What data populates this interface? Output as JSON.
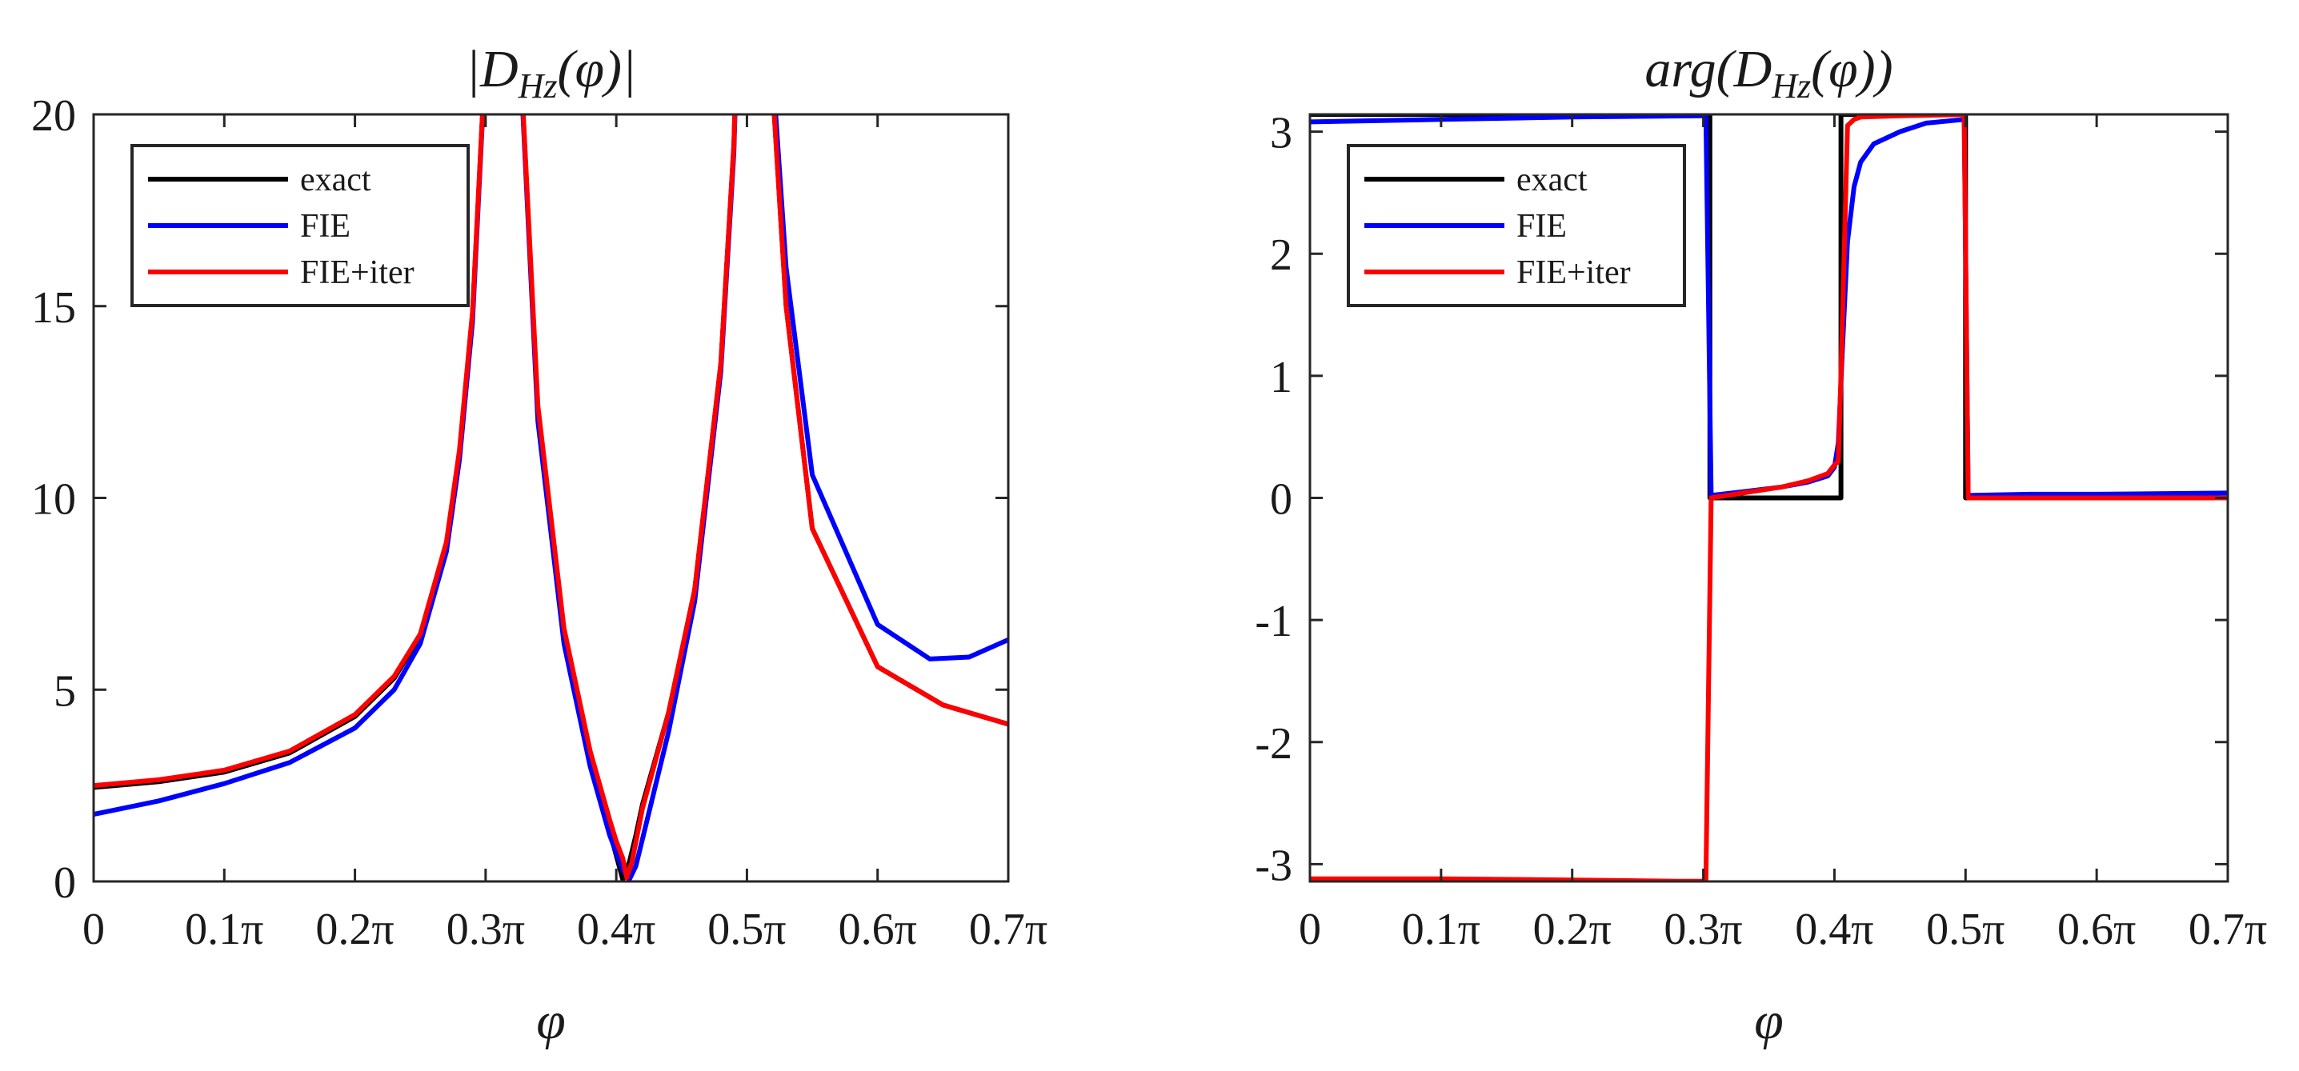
{
  "chart_data": [
    {
      "type": "line",
      "title": "|D_Hz(φ)|",
      "title_parts": [
        "|",
        "D",
        "Hz",
        "(",
        "φ",
        ")|"
      ],
      "xlabel": "φ",
      "ylabel": "",
      "xlim": [
        0,
        0.7
      ],
      "ylim": [
        0,
        20
      ],
      "xticks": [
        0,
        0.1,
        0.2,
        0.3,
        0.4,
        0.5,
        0.6,
        0.7
      ],
      "xtick_labels": [
        "0",
        "0.1π",
        "0.2π",
        "0.3π",
        "0.4π",
        "0.5π",
        "0.6π",
        "0.7π"
      ],
      "yticks": [
        0,
        5,
        10,
        15,
        20
      ],
      "ytick_labels": [
        "0",
        "5",
        "10",
        "15",
        "20"
      ],
      "grid": false,
      "legend": "top-left",
      "series": [
        {
          "name": "exact",
          "color": "#000000",
          "x": [
            0,
            0.05,
            0.1,
            0.15,
            0.2,
            0.23,
            0.25,
            0.27,
            0.28,
            0.29,
            0.305,
            0.32,
            0.34,
            0.36,
            0.38,
            0.395,
            0.405,
            0.41,
            0.415,
            0.42,
            0.44,
            0.46,
            0.48,
            0.49,
            0.495,
            0.515,
            0.52,
            0.53,
            0.55,
            0.6,
            0.65,
            0.7
          ],
          "y": [
            2.45,
            2.6,
            2.85,
            3.35,
            4.3,
            5.3,
            6.4,
            8.8,
            11.2,
            14.8,
            25,
            26,
            12.2,
            6.4,
            3.2,
            1.3,
            0.05,
            0.5,
            1.2,
            2.0,
            4.4,
            7.6,
            13.5,
            19.2,
            25,
            25,
            20.5,
            15,
            9.2,
            5.6,
            4.6,
            4.1
          ]
        },
        {
          "name": "FIE",
          "color": "#0000ff",
          "x": [
            0,
            0.05,
            0.1,
            0.15,
            0.2,
            0.23,
            0.25,
            0.27,
            0.28,
            0.29,
            0.305,
            0.32,
            0.34,
            0.36,
            0.38,
            0.395,
            0.405,
            0.41,
            0.415,
            0.42,
            0.44,
            0.46,
            0.48,
            0.49,
            0.495,
            0.515,
            0.52,
            0.53,
            0.55,
            0.6,
            0.64,
            0.67,
            0.7
          ],
          "y": [
            1.75,
            2.1,
            2.55,
            3.1,
            4.0,
            5.0,
            6.2,
            8.6,
            11.0,
            14.6,
            25,
            26,
            12.0,
            6.2,
            3.0,
            1.2,
            0.3,
            0.05,
            0.4,
            1.1,
            3.9,
            7.3,
            13.3,
            19.0,
            25,
            25,
            21,
            16,
            10.6,
            6.7,
            5.8,
            5.85,
            6.3
          ]
        },
        {
          "name": "FIE+iter",
          "color": "#ff0000",
          "x": [
            0,
            0.05,
            0.1,
            0.15,
            0.2,
            0.23,
            0.25,
            0.27,
            0.28,
            0.29,
            0.305,
            0.32,
            0.34,
            0.36,
            0.38,
            0.395,
            0.4,
            0.405,
            0.408,
            0.412,
            0.42,
            0.44,
            0.46,
            0.48,
            0.49,
            0.495,
            0.515,
            0.52,
            0.53,
            0.55,
            0.6,
            0.65,
            0.7
          ],
          "y": [
            2.5,
            2.65,
            2.9,
            3.4,
            4.35,
            5.35,
            6.45,
            8.85,
            11.25,
            14.85,
            25,
            26,
            12.4,
            6.6,
            3.4,
            1.6,
            1.05,
            0.6,
            0.1,
            0.5,
            1.9,
            4.4,
            7.6,
            13.5,
            19.2,
            25,
            25,
            20.5,
            15,
            9.2,
            5.6,
            4.6,
            4.1
          ]
        }
      ]
    },
    {
      "type": "line",
      "title": "arg(D_Hz(φ))",
      "title_parts": [
        "arg(",
        "D",
        "Hz",
        "(",
        "φ",
        "))"
      ],
      "xlabel": "φ",
      "ylabel": "",
      "xlim": [
        0,
        0.7
      ],
      "ylim": [
        -3.1416,
        3.1416
      ],
      "xticks": [
        0,
        0.1,
        0.2,
        0.3,
        0.4,
        0.5,
        0.6,
        0.7
      ],
      "xtick_labels": [
        "0",
        "0.1π",
        "0.2π",
        "0.3π",
        "0.4π",
        "0.5π",
        "0.6π",
        "0.7π"
      ],
      "yticks": [
        -3,
        -2,
        -1,
        0,
        1,
        2,
        3
      ],
      "ytick_labels": [
        "-3",
        "-2",
        "-1",
        "0",
        "1",
        "2",
        "3"
      ],
      "grid": false,
      "legend": "top-left",
      "series": [
        {
          "name": "exact",
          "color": "#000000",
          "x": [
            0,
            0.305,
            0.305,
            0.405,
            0.405,
            0.5,
            0.5,
            0.7
          ],
          "y": [
            3.1416,
            3.1416,
            0,
            0,
            3.1416,
            3.1416,
            0,
            0
          ]
        },
        {
          "name": "FIE",
          "color": "#0000ff",
          "x": [
            0,
            0.1,
            0.2,
            0.3,
            0.302,
            0.306,
            0.33,
            0.36,
            0.38,
            0.395,
            0.4,
            0.403,
            0.406,
            0.41,
            0.415,
            0.42,
            0.43,
            0.45,
            0.47,
            0.499,
            0.502,
            0.55,
            0.6,
            0.7
          ],
          "y": [
            3.08,
            3.1,
            3.12,
            3.13,
            3.13,
            0.02,
            0.05,
            0.09,
            0.13,
            0.18,
            0.25,
            0.45,
            1.2,
            2.1,
            2.55,
            2.75,
            2.9,
            3.0,
            3.07,
            3.1,
            0.02,
            0.03,
            0.03,
            0.04
          ]
        },
        {
          "name": "FIE+iter",
          "color": "#ff0000",
          "x": [
            0,
            0.1,
            0.2,
            0.28,
            0.3,
            0.302,
            0.306,
            0.33,
            0.36,
            0.38,
            0.395,
            0.4,
            0.403,
            0.405,
            0.41,
            0.415,
            0.42,
            0.45,
            0.499,
            0.502,
            0.55,
            0.6,
            0.7
          ],
          "y": [
            -3.12,
            -3.12,
            -3.13,
            -3.14,
            -3.14,
            -3.14,
            0.0,
            0.04,
            0.09,
            0.14,
            0.2,
            0.27,
            0.3,
            1.0,
            3.05,
            3.1,
            3.12,
            3.13,
            3.14,
            0.0,
            0.0,
            0.0,
            0.0
          ]
        }
      ]
    }
  ]
}
